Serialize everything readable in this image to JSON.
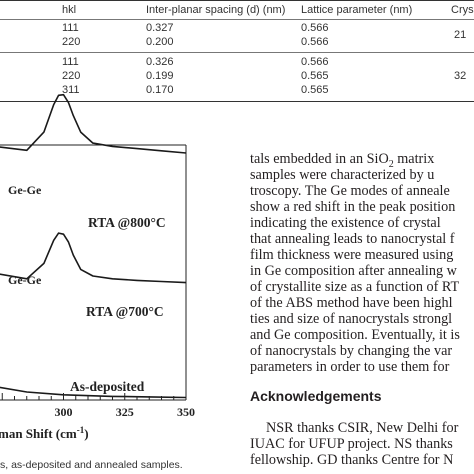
{
  "table": {
    "headers": {
      "hkl": "hkl",
      "spacing": "Inter-planar spacing (d) (nm)",
      "lattice": "Lattice parameter (nm)",
      "crystallite": "Crys"
    },
    "group1": {
      "rows": [
        {
          "hkl": "111",
          "spacing": "0.327",
          "lattice": "0.566"
        },
        {
          "hkl": "220",
          "spacing": "0.200",
          "lattice": "0.566"
        }
      ],
      "size": "21"
    },
    "group2": {
      "rows": [
        {
          "hkl": "111",
          "spacing": "0.326",
          "lattice": "0.566"
        },
        {
          "hkl": "220",
          "spacing": "0.199",
          "lattice": "0.565"
        },
        {
          "hkl": "311",
          "spacing": "0.170",
          "lattice": "0.565"
        }
      ],
      "size": "32"
    }
  },
  "chart_data": {
    "type": "line",
    "xlabel": "man Shift (cm",
    "xlabel_sup": "-1",
    "xlabel_close": ")",
    "x_ticks": [
      "300",
      "325",
      "350"
    ],
    "xlim": [
      270,
      350
    ],
    "series": [
      {
        "label": "RTA @800°C",
        "peak_label": "Ge-Ge",
        "x": [
          272,
          285,
          292,
          296,
          298,
          300,
          302,
          304,
          307,
          312,
          320,
          330,
          340,
          350
        ],
        "y": [
          52,
          45,
          78,
          128,
          145,
          146,
          132,
          108,
          78,
          58,
          52,
          48,
          44,
          40
        ]
      },
      {
        "label": "RTA @700°C",
        "peak_label": "Ge-Ge",
        "x": [
          272,
          285,
          292,
          296,
          298,
          300,
          302,
          304,
          307,
          312,
          320,
          330,
          340,
          350
        ],
        "y": [
          -15,
          -25,
          3,
          45,
          58,
          56,
          42,
          18,
          -8,
          -20,
          -25,
          -28,
          -30,
          -32
        ]
      },
      {
        "label": "As-deposited",
        "peak_label": "",
        "x": [
          272,
          285,
          300,
          320,
          335,
          350
        ],
        "y": [
          -70,
          -80,
          -85,
          -88,
          -89,
          -90
        ]
      }
    ]
  },
  "figure_caption": "s, as-deposited and annealed samples.",
  "body_lines": [
    "tals embedded in an SiO",
    "samples were characterized by u",
    "troscopy. The Ge modes of anneale",
    "show a red shift in the peak position",
    "indicating the existence of crystal",
    "that annealing leads to nanocrystal f",
    "film thickness were measured using",
    "in Ge composition after annealing w",
    "of crystallite size as a function of RT",
    "of the ABS method have been highl",
    "ties and size of nanocrystals strongl",
    "and Ge composition. Eventually, it is",
    "of nanocrystals by changing the var",
    "parameters in order to use them for"
  ],
  "body_line1_sub": "2",
  "body_line1_tail": " matrix",
  "acknowledgements": {
    "heading": "Acknowledgements",
    "lines": [
      "NSR thanks CSIR, New Delhi for",
      "IUAC for UFUP project. NS thanks",
      "fellowship. GD thanks Centre for N"
    ]
  }
}
